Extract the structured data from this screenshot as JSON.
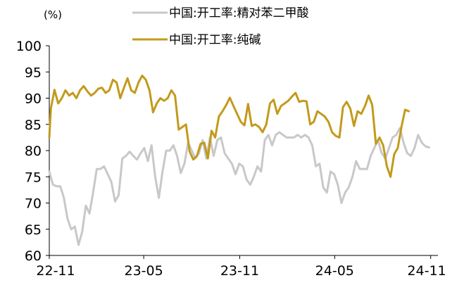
{
  "chart_data": {
    "type": "line",
    "unit_label": "(%)",
    "ylim": [
      60,
      100
    ],
    "yticks": [
      60,
      65,
      70,
      75,
      80,
      85,
      90,
      95,
      100
    ],
    "xlim": [
      "2022-11-01",
      "2024-11-15"
    ],
    "xtick_labels": [
      {
        "date": "2022-11-01",
        "label": "22-11"
      },
      {
        "date": "2023-05-01",
        "label": "23-05"
      },
      {
        "date": "2023-11-01",
        "label": "23-11"
      },
      {
        "date": "2024-05-01",
        "label": "24-05"
      },
      {
        "date": "2024-11-01",
        "label": "24-11"
      }
    ],
    "grid": false,
    "legend_position": "top",
    "series": [
      {
        "name": "中国:开工率:精对苯二甲酸",
        "color": "#c8c8c8",
        "points": [
          [
            "2022-11-01",
            76.0
          ],
          [
            "2022-11-08",
            73.5
          ],
          [
            "2022-11-15",
            73.2
          ],
          [
            "2022-11-22",
            73.2
          ],
          [
            "2022-11-29",
            71.0
          ],
          [
            "2022-12-06",
            67.0
          ],
          [
            "2022-12-13",
            65.0
          ],
          [
            "2022-12-20",
            65.5
          ],
          [
            "2022-12-27",
            62.0
          ],
          [
            "2023-01-03",
            64.5
          ],
          [
            "2023-01-10",
            69.5
          ],
          [
            "2023-01-17",
            68.0
          ],
          [
            "2023-01-24",
            72.0
          ],
          [
            "2023-01-31",
            76.5
          ],
          [
            "2023-02-07",
            76.5
          ],
          [
            "2023-02-14",
            77.0
          ],
          [
            "2023-02-21",
            75.5
          ],
          [
            "2023-02-28",
            74.0
          ],
          [
            "2023-03-07",
            70.3
          ],
          [
            "2023-03-14",
            71.5
          ],
          [
            "2023-03-21",
            78.5
          ],
          [
            "2023-03-28",
            79.0
          ],
          [
            "2023-04-04",
            79.8
          ],
          [
            "2023-04-11",
            79.0
          ],
          [
            "2023-04-18",
            78.3
          ],
          [
            "2023-04-25",
            79.5
          ],
          [
            "2023-05-02",
            80.5
          ],
          [
            "2023-05-09",
            78.0
          ],
          [
            "2023-05-16",
            81.0
          ],
          [
            "2023-05-23",
            75.0
          ],
          [
            "2023-05-30",
            71.0
          ],
          [
            "2023-06-06",
            76.0
          ],
          [
            "2023-06-13",
            80.0
          ],
          [
            "2023-06-20",
            80.0
          ],
          [
            "2023-06-27",
            81.0
          ],
          [
            "2023-07-04",
            79.0
          ],
          [
            "2023-07-11",
            75.7
          ],
          [
            "2023-07-18",
            77.5
          ],
          [
            "2023-07-25",
            81.5
          ],
          [
            "2023-08-01",
            80.0
          ],
          [
            "2023-08-08",
            78.5
          ],
          [
            "2023-08-15",
            79.5
          ],
          [
            "2023-08-22",
            82.0
          ],
          [
            "2023-08-29",
            78.5
          ],
          [
            "2023-09-05",
            82.5
          ],
          [
            "2023-09-12",
            79.0
          ],
          [
            "2023-09-19",
            82.0
          ],
          [
            "2023-09-26",
            82.5
          ],
          [
            "2023-10-03",
            79.5
          ],
          [
            "2023-10-10",
            78.5
          ],
          [
            "2023-10-17",
            77.5
          ],
          [
            "2023-10-24",
            75.5
          ],
          [
            "2023-10-31",
            77.5
          ],
          [
            "2023-11-07",
            77.0
          ],
          [
            "2023-11-14",
            74.5
          ],
          [
            "2023-11-21",
            73.5
          ],
          [
            "2023-11-28",
            75.0
          ],
          [
            "2023-12-05",
            77.0
          ],
          [
            "2023-12-12",
            76.0
          ],
          [
            "2023-12-19",
            82.0
          ],
          [
            "2023-12-26",
            83.0
          ],
          [
            "2024-01-02",
            81.0
          ],
          [
            "2024-01-09",
            83.0
          ],
          [
            "2024-01-16",
            83.5
          ],
          [
            "2024-01-23",
            83.0
          ],
          [
            "2024-01-30",
            82.5
          ],
          [
            "2024-02-06",
            82.5
          ],
          [
            "2024-02-13",
            82.5
          ],
          [
            "2024-02-20",
            83.0
          ],
          [
            "2024-02-27",
            82.5
          ],
          [
            "2024-03-05",
            83.0
          ],
          [
            "2024-03-12",
            82.5
          ],
          [
            "2024-03-19",
            81.0
          ],
          [
            "2024-03-26",
            77.0
          ],
          [
            "2024-04-02",
            77.5
          ],
          [
            "2024-04-09",
            73.0
          ],
          [
            "2024-04-16",
            72.0
          ],
          [
            "2024-04-23",
            76.0
          ],
          [
            "2024-04-30",
            75.5
          ],
          [
            "2024-05-07",
            73.5
          ],
          [
            "2024-05-14",
            70.0
          ],
          [
            "2024-05-21",
            72.0
          ],
          [
            "2024-05-28",
            73.0
          ],
          [
            "2024-06-04",
            75.0
          ],
          [
            "2024-06-11",
            78.0
          ],
          [
            "2024-06-18",
            76.5
          ],
          [
            "2024-06-25",
            76.5
          ],
          [
            "2024-07-02",
            76.5
          ],
          [
            "2024-07-09",
            79.0
          ],
          [
            "2024-07-16",
            80.5
          ],
          [
            "2024-07-23",
            82.0
          ],
          [
            "2024-07-30",
            79.5
          ],
          [
            "2024-08-06",
            78.5
          ],
          [
            "2024-08-13",
            80.5
          ],
          [
            "2024-08-20",
            82.5
          ],
          [
            "2024-08-27",
            83.0
          ],
          [
            "2024-09-03",
            84.3
          ],
          [
            "2024-09-10",
            81.5
          ],
          [
            "2024-09-17",
            79.5
          ],
          [
            "2024-09-24",
            79.0
          ],
          [
            "2024-10-01",
            80.5
          ],
          [
            "2024-10-08",
            83.0
          ],
          [
            "2024-10-15",
            81.5
          ],
          [
            "2024-10-22",
            80.8
          ],
          [
            "2024-10-29",
            80.6
          ]
        ]
      },
      {
        "name": "中国:开工率:纯碱",
        "color": "#c29a1c",
        "points": [
          [
            "2022-11-01",
            82.5
          ],
          [
            "2022-11-04",
            88.0
          ],
          [
            "2022-11-11",
            91.6
          ],
          [
            "2022-11-18",
            89.0
          ],
          [
            "2022-11-25",
            90.0
          ],
          [
            "2022-12-02",
            91.5
          ],
          [
            "2022-12-09",
            90.5
          ],
          [
            "2022-12-16",
            91.0
          ],
          [
            "2022-12-23",
            90.0
          ],
          [
            "2022-12-30",
            91.5
          ],
          [
            "2023-01-06",
            92.3
          ],
          [
            "2023-01-13",
            91.3
          ],
          [
            "2023-01-20",
            90.5
          ],
          [
            "2023-01-27",
            91.0
          ],
          [
            "2023-02-03",
            91.8
          ],
          [
            "2023-02-10",
            92.0
          ],
          [
            "2023-02-17",
            91.0
          ],
          [
            "2023-02-24",
            91.5
          ],
          [
            "2023-03-03",
            93.5
          ],
          [
            "2023-03-10",
            93.0
          ],
          [
            "2023-03-17",
            90.0
          ],
          [
            "2023-03-24",
            92.0
          ],
          [
            "2023-03-31",
            93.8
          ],
          [
            "2023-04-07",
            91.5
          ],
          [
            "2023-04-14",
            91.0
          ],
          [
            "2023-04-21",
            93.0
          ],
          [
            "2023-04-28",
            94.3
          ],
          [
            "2023-05-05",
            93.5
          ],
          [
            "2023-05-12",
            91.5
          ],
          [
            "2023-05-19",
            87.3
          ],
          [
            "2023-05-26",
            89.0
          ],
          [
            "2023-06-02",
            90.0
          ],
          [
            "2023-06-09",
            89.5
          ],
          [
            "2023-06-16",
            90.0
          ],
          [
            "2023-06-23",
            91.5
          ],
          [
            "2023-06-30",
            90.5
          ],
          [
            "2023-07-07",
            84.0
          ],
          [
            "2023-07-14",
            84.5
          ],
          [
            "2023-07-21",
            85.0
          ],
          [
            "2023-07-28",
            79.8
          ],
          [
            "2023-08-04",
            78.3
          ],
          [
            "2023-08-11",
            79.0
          ],
          [
            "2023-08-18",
            81.3
          ],
          [
            "2023-08-25",
            81.5
          ],
          [
            "2023-09-01",
            78.5
          ],
          [
            "2023-09-08",
            83.8
          ],
          [
            "2023-09-15",
            82.5
          ],
          [
            "2023-09-22",
            86.5
          ],
          [
            "2023-09-29",
            87.5
          ],
          [
            "2023-10-06",
            88.7
          ],
          [
            "2023-10-13",
            90.1
          ],
          [
            "2023-10-20",
            88.5
          ],
          [
            "2023-10-27",
            87.0
          ],
          [
            "2023-11-03",
            85.5
          ],
          [
            "2023-11-10",
            84.8
          ],
          [
            "2023-11-17",
            88.9
          ],
          [
            "2023-11-24",
            84.7
          ],
          [
            "2023-12-01",
            85.0
          ],
          [
            "2023-12-08",
            84.5
          ],
          [
            "2023-12-15",
            83.5
          ],
          [
            "2023-12-22",
            85.0
          ],
          [
            "2023-12-29",
            89.0
          ],
          [
            "2024-01-05",
            89.7
          ],
          [
            "2024-01-12",
            87.0
          ],
          [
            "2024-01-19",
            88.5
          ],
          [
            "2024-01-26",
            89.0
          ],
          [
            "2024-02-02",
            89.5
          ],
          [
            "2024-02-09",
            90.3
          ],
          [
            "2024-02-16",
            91.0
          ],
          [
            "2024-02-23",
            89.3
          ],
          [
            "2024-03-01",
            89.5
          ],
          [
            "2024-03-08",
            89.4
          ],
          [
            "2024-03-15",
            85.0
          ],
          [
            "2024-03-22",
            85.5
          ],
          [
            "2024-03-29",
            87.5
          ],
          [
            "2024-04-05",
            87.0
          ],
          [
            "2024-04-12",
            86.5
          ],
          [
            "2024-04-19",
            85.5
          ],
          [
            "2024-04-26",
            83.5
          ],
          [
            "2024-05-03",
            82.8
          ],
          [
            "2024-05-10",
            82.5
          ],
          [
            "2024-05-17",
            88.3
          ],
          [
            "2024-05-24",
            89.3
          ],
          [
            "2024-05-31",
            88.0
          ],
          [
            "2024-06-07",
            84.7
          ],
          [
            "2024-06-14",
            87.5
          ],
          [
            "2024-06-21",
            87.0
          ],
          [
            "2024-06-28",
            88.5
          ],
          [
            "2024-07-05",
            90.5
          ],
          [
            "2024-07-12",
            88.7
          ],
          [
            "2024-07-19",
            81.3
          ],
          [
            "2024-07-26",
            82.5
          ],
          [
            "2024-08-02",
            81.0
          ],
          [
            "2024-08-09",
            77.0
          ],
          [
            "2024-08-16",
            75.0
          ],
          [
            "2024-08-23",
            79.3
          ],
          [
            "2024-08-30",
            80.5
          ],
          [
            "2024-09-06",
            84.5
          ],
          [
            "2024-09-13",
            87.8
          ],
          [
            "2024-09-20",
            87.5
          ]
        ]
      }
    ]
  }
}
